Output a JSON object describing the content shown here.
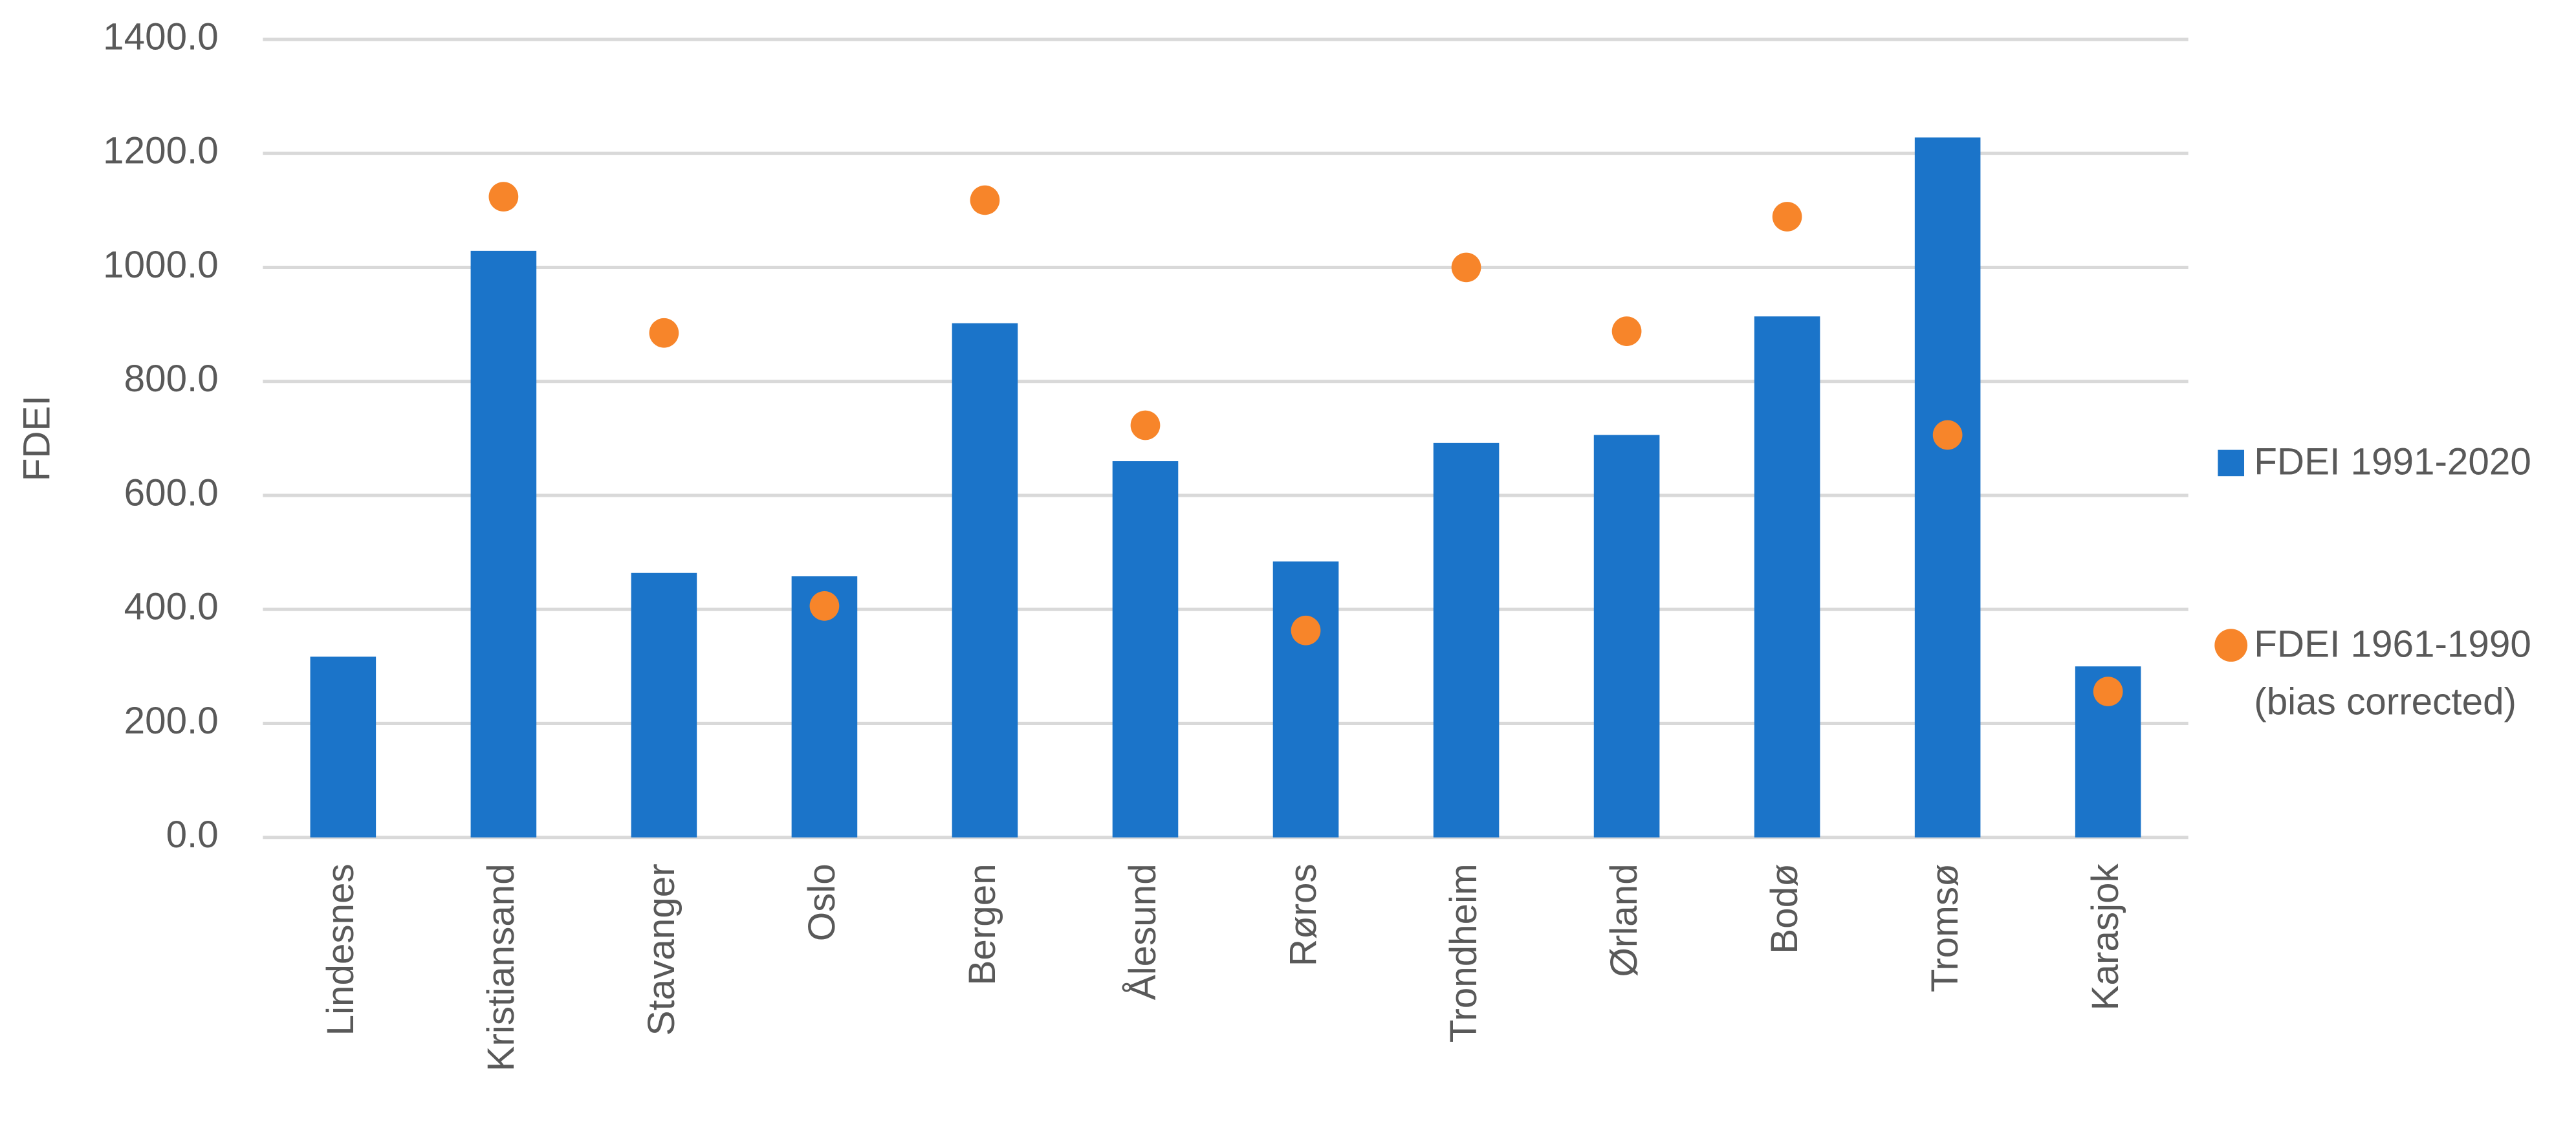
{
  "chart_data": {
    "type": "bar",
    "y_label": "FDEI",
    "categories": [
      "Lindesnes",
      "Kristiansand",
      "Stavanger",
      "Oslo",
      "Bergen",
      "Ålesund",
      "Røros",
      "Trondheim",
      "Ørland",
      "Bodø",
      "Tromsø",
      "Karasjok"
    ],
    "series": [
      {
        "name": "FDEI 1991-2020",
        "color": "#1b74c9",
        "type": "bar",
        "values": [
          317,
          1029,
          464,
          458,
          902,
          660,
          484,
          692,
          706,
          914,
          1228,
          300
        ]
      },
      {
        "name": "FDEI 1961-1990 (bias corrected)",
        "color": "#f7852a",
        "type": "scatter",
        "values": [
          null,
          1124,
          885,
          406,
          1118,
          723,
          363,
          1000,
          888,
          1089,
          706,
          256
        ]
      }
    ],
    "ylim": [
      0,
      1400
    ],
    "yticks": [
      {
        "value": 0,
        "label": "0.0"
      },
      {
        "value": 200,
        "label": "200.0"
      },
      {
        "value": 400,
        "label": "400.0"
      },
      {
        "value": 600,
        "label": "600.0"
      },
      {
        "value": 800,
        "label": "800.0"
      },
      {
        "value": 1000,
        "label": "1000.0"
      },
      {
        "value": 1200,
        "label": "1200.0"
      },
      {
        "value": 1400,
        "label": "1400.0"
      }
    ],
    "grid": true,
    "legend": "right"
  }
}
